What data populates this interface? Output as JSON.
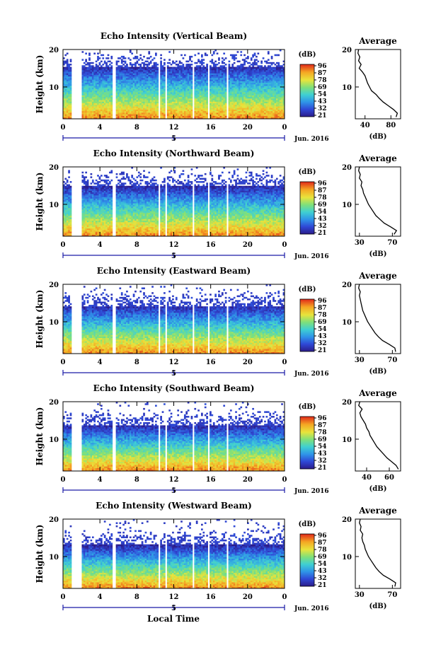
{
  "figure": {
    "xlabel": "Local Time",
    "date_label": "Jun. 2016",
    "colorbar_label": "(dB)",
    "colorbar_ticks": [
      "96",
      "87",
      "78",
      "69",
      "54",
      "43",
      "32",
      "21"
    ],
    "avg_title": "Average",
    "avg_xlabel": "(dB)"
  },
  "chart_data": [
    {
      "type": "heatmap",
      "title": "Echo Intensity (Vertical Beam)",
      "xlabel": "Local Time",
      "ylabel": "Height (km)",
      "x_ticks": [
        "0",
        "4",
        "8",
        "12",
        "16",
        "20",
        "0"
      ],
      "x_day_label": "5",
      "date_label": "Jun. 2016",
      "y_ticks": [
        "20",
        "10"
      ],
      "ylim": [
        1.5,
        20
      ],
      "xlim_hours": [
        0,
        24
      ],
      "colorbar": {
        "label": "(dB)",
        "ticks": [
          "96",
          "87",
          "78",
          "69",
          "54",
          "43",
          "32",
          "21"
        ]
      },
      "data_gaps_hours": [
        [
          0.9,
          2.1
        ],
        [
          5.4,
          5.7
        ],
        [
          10.3,
          10.6
        ],
        [
          11.1,
          11.3
        ],
        [
          14.1,
          14.3
        ],
        [
          15.7,
          15.9
        ],
        [
          17.7,
          17.9
        ]
      ],
      "average_profile": {
        "title": "Average",
        "xlabel": "(dB)",
        "x_ticks": [
          "40",
          "80"
        ],
        "y_ticks": [
          "20",
          "10"
        ],
        "xlim": [
          25,
          95
        ],
        "height_km": [
          2,
          3,
          4,
          5,
          6,
          7,
          8,
          9,
          10,
          11,
          12,
          13,
          14,
          15,
          16,
          17,
          18,
          19,
          20
        ],
        "values_db": [
          88,
          90,
          84,
          76,
          68,
          62,
          57,
          50,
          47,
          44,
          42,
          40,
          36,
          31,
          34,
          30,
          32,
          29,
          30
        ]
      }
    },
    {
      "type": "heatmap",
      "title": "Echo Intensity (Northward Beam)",
      "xlabel": "Local Time",
      "ylabel": "Height (km)",
      "x_ticks": [
        "0",
        "4",
        "8",
        "12",
        "16",
        "20",
        "0"
      ],
      "x_day_label": "5",
      "date_label": "Jun. 2016",
      "y_ticks": [
        "20",
        "10"
      ],
      "ylim": [
        1.5,
        20
      ],
      "xlim_hours": [
        0,
        24
      ],
      "colorbar": {
        "label": "(dB)",
        "ticks": [
          "96",
          "87",
          "78",
          "69",
          "54",
          "43",
          "32",
          "21"
        ]
      },
      "data_gaps_hours": [
        [
          0.9,
          2.1
        ],
        [
          5.4,
          5.7
        ],
        [
          10.3,
          10.6
        ],
        [
          11.1,
          11.3
        ],
        [
          14.1,
          14.3
        ],
        [
          15.7,
          15.9
        ],
        [
          17.7,
          17.9
        ]
      ],
      "average_profile": {
        "title": "Average",
        "xlabel": "(dB)",
        "x_ticks": [
          "30",
          "70"
        ],
        "y_ticks": [
          "20",
          "10"
        ],
        "xlim": [
          25,
          80
        ],
        "height_km": [
          2,
          3,
          4,
          5,
          6,
          7,
          8,
          9,
          10,
          11,
          12,
          13,
          14,
          15,
          16,
          17,
          18,
          19,
          20
        ],
        "values_db": [
          72,
          75,
          68,
          60,
          55,
          50,
          47,
          44,
          41,
          39,
          37,
          35,
          34,
          32,
          33,
          30,
          31,
          29,
          30
        ]
      }
    },
    {
      "type": "heatmap",
      "title": "Echo Intensity (Eastward Beam)",
      "xlabel": "Local Time",
      "ylabel": "Height (km)",
      "x_ticks": [
        "0",
        "4",
        "8",
        "12",
        "16",
        "20",
        "0"
      ],
      "x_day_label": "5",
      "date_label": "Jun. 2016",
      "y_ticks": [
        "20",
        "10"
      ],
      "ylim": [
        1.5,
        20
      ],
      "xlim_hours": [
        0,
        24
      ],
      "colorbar": {
        "label": "(dB)",
        "ticks": [
          "96",
          "87",
          "78",
          "69",
          "54",
          "43",
          "32",
          "21"
        ]
      },
      "data_gaps_hours": [
        [
          0.9,
          2.1
        ],
        [
          5.4,
          5.7
        ],
        [
          10.3,
          10.6
        ],
        [
          11.1,
          11.3
        ],
        [
          14.1,
          14.3
        ],
        [
          15.7,
          15.9
        ],
        [
          17.7,
          17.9
        ]
      ],
      "average_profile": {
        "title": "Average",
        "xlabel": "(dB)",
        "x_ticks": [
          "30",
          "70"
        ],
        "y_ticks": [
          "20",
          "10"
        ],
        "xlim": [
          25,
          80
        ],
        "height_km": [
          2,
          3,
          4,
          5,
          6,
          7,
          8,
          9,
          10,
          11,
          12,
          13,
          14,
          15,
          16,
          17,
          18,
          19,
          20
        ],
        "values_db": [
          74,
          73,
          66,
          58,
          53,
          49,
          46,
          43,
          40,
          38,
          36,
          34,
          33,
          32,
          31,
          30,
          31,
          29,
          30
        ]
      }
    },
    {
      "type": "heatmap",
      "title": "Echo Intensity (Southward Beam)",
      "xlabel": "Local Time",
      "ylabel": "Height (km)",
      "x_ticks": [
        "0",
        "4",
        "8",
        "12",
        "16",
        "20",
        "0"
      ],
      "x_day_label": "5",
      "date_label": "Jun. 2016",
      "y_ticks": [
        "20",
        "10"
      ],
      "ylim": [
        1.5,
        20
      ],
      "xlim_hours": [
        0,
        24
      ],
      "colorbar": {
        "label": "(dB)",
        "ticks": [
          "96",
          "87",
          "78",
          "69",
          "54",
          "43",
          "32",
          "21"
        ]
      },
      "data_gaps_hours": [
        [
          0.9,
          2.1
        ],
        [
          5.4,
          5.7
        ],
        [
          10.3,
          10.6
        ],
        [
          11.1,
          11.3
        ],
        [
          14.1,
          14.3
        ],
        [
          15.7,
          15.9
        ],
        [
          17.7,
          17.9
        ]
      ],
      "average_profile": {
        "title": "Average",
        "xlabel": "(dB)",
        "x_ticks": [
          "40",
          "60"
        ],
        "y_ticks": [
          "20",
          "10"
        ],
        "xlim": [
          30,
          70
        ],
        "height_km": [
          2,
          3,
          4,
          5,
          6,
          7,
          8,
          9,
          10,
          11,
          12,
          13,
          14,
          15,
          16,
          17,
          18,
          19,
          20
        ],
        "values_db": [
          68,
          66,
          62,
          58,
          55,
          52,
          49,
          47,
          45,
          43,
          42,
          40,
          39,
          37,
          35,
          34,
          36,
          33,
          34
        ]
      }
    },
    {
      "type": "heatmap",
      "title": "Echo Intensity (Westward Beam)",
      "xlabel": "Local Time",
      "ylabel": "Height (km)",
      "x_ticks": [
        "0",
        "4",
        "8",
        "12",
        "16",
        "20",
        "0"
      ],
      "x_day_label": "5",
      "date_label": "Jun. 2016",
      "y_ticks": [
        "20",
        "10"
      ],
      "ylim": [
        1.5,
        20
      ],
      "xlim_hours": [
        0,
        24
      ],
      "colorbar": {
        "label": "(dB)",
        "ticks": [
          "96",
          "87",
          "78",
          "69",
          "54",
          "43",
          "32",
          "21"
        ]
      },
      "data_gaps_hours": [
        [
          0.9,
          2.1
        ],
        [
          5.4,
          5.7
        ],
        [
          10.3,
          10.6
        ],
        [
          11.1,
          11.3
        ],
        [
          14.1,
          14.3
        ],
        [
          15.7,
          15.9
        ],
        [
          17.7,
          17.9
        ]
      ],
      "average_profile": {
        "title": "Average",
        "xlabel": "(dB)",
        "x_ticks": [
          "30",
          "70"
        ],
        "y_ticks": [
          "20",
          "10"
        ],
        "xlim": [
          25,
          80
        ],
        "height_km": [
          2,
          3,
          4,
          5,
          6,
          7,
          8,
          9,
          10,
          11,
          12,
          13,
          14,
          15,
          16,
          17,
          18,
          19,
          20
        ],
        "values_db": [
          73,
          74,
          67,
          59,
          54,
          50,
          47,
          44,
          41,
          39,
          37,
          36,
          34,
          33,
          34,
          31,
          32,
          30,
          31
        ]
      }
    }
  ]
}
